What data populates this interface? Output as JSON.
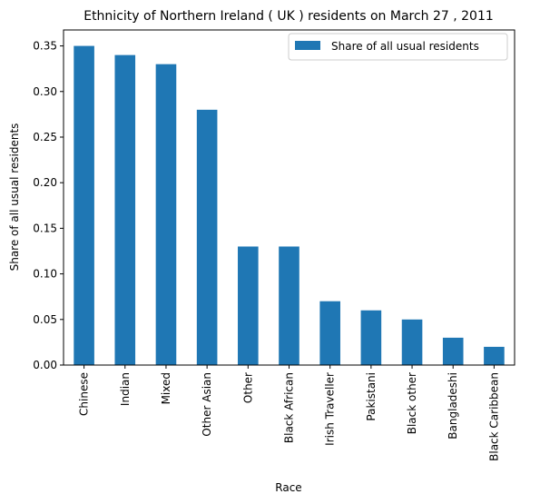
{
  "chart_data": {
    "type": "bar",
    "title": "Ethnicity of Northern Ireland ( UK ) residents on March 27 , 2011",
    "xlabel": "Race",
    "ylabel": "Share of all usual residents",
    "categories": [
      "Chinese",
      "Indian",
      "Mixed",
      "Other Asian",
      "Other",
      "Black African",
      "Irish Traveller",
      "Pakistani",
      "Black other",
      "Bangladeshi",
      "Black Caribbean"
    ],
    "series": [
      {
        "name": "Share of all usual residents",
        "values": [
          0.35,
          0.34,
          0.33,
          0.28,
          0.13,
          0.13,
          0.07,
          0.06,
          0.05,
          0.03,
          0.02
        ],
        "color": "#1f77b4"
      }
    ],
    "ylim": [
      0,
      0.3675
    ],
    "yticks": [
      "0.00",
      "0.05",
      "0.10",
      "0.15",
      "0.20",
      "0.25",
      "0.30",
      "0.35"
    ],
    "grid": false,
    "legend_position": "top-right"
  }
}
